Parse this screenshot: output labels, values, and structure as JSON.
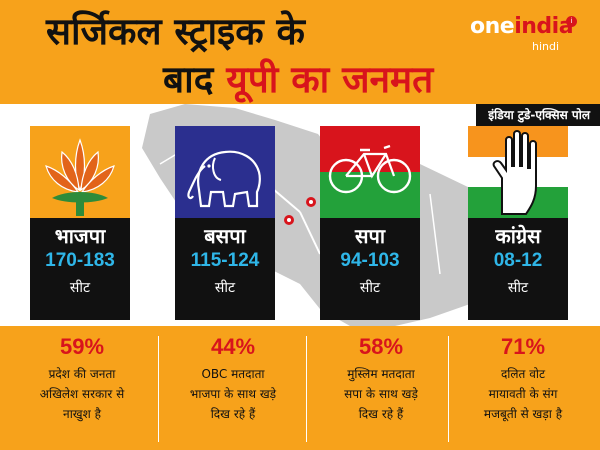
{
  "title": {
    "line1": "सर्जिकल स्ट्राइक के",
    "line2_dark": "बाद ",
    "line2_red": "यूपी का जनमत"
  },
  "logo": {
    "one": "one",
    "india": "india",
    "sub": "hindi",
    "badge": "i"
  },
  "source": "इंडिया टुडे-एक्सिस पोल",
  "parties": [
    {
      "name": "भाजपा",
      "range": "170-183",
      "seat": "सीट",
      "symbol": "lotus-icon"
    },
    {
      "name": "बसपा",
      "range": "115-124",
      "seat": "सीट",
      "symbol": "elephant-icon"
    },
    {
      "name": "सपा",
      "range": "94-103",
      "seat": "सीट",
      "symbol": "bicycle-icon"
    },
    {
      "name": "कांग्रेस",
      "range": "08-12",
      "seat": "सीट",
      "symbol": "hand-icon"
    }
  ],
  "stats": [
    {
      "pct": "59%",
      "lines": [
        "प्रदेश की जनता",
        "अखिलेश सरकार से",
        "नाखुश है"
      ]
    },
    {
      "pct": "44%",
      "lines": [
        "OBC मतदाता",
        "भाजपा के साथ खड़े",
        "दिख रहे हैं"
      ]
    },
    {
      "pct": "58%",
      "lines": [
        "मुस्लिम मतदाता",
        "सपा के साथ खड़े",
        "दिख रहे हैं"
      ]
    },
    {
      "pct": "71%",
      "lines": [
        "दलित वोट",
        "मायावती के संग",
        "मजबूती से खड़ा है"
      ]
    }
  ],
  "colors": {
    "orange": "#f7a21b",
    "red": "#d8141c",
    "cyan": "#2fb6e8",
    "bjp_bg": "#f7a21b",
    "bsp_bg": "#2b2f8f",
    "sp_top": "#d8141c",
    "sp_bottom": "#23a13a"
  }
}
